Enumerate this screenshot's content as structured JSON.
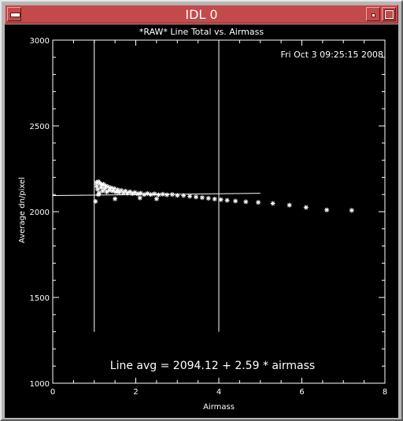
{
  "window": {
    "title": "IDL 0"
  },
  "chart_data": {
    "type": "scatter",
    "title": "*RAW* Line Total vs. Airmass",
    "timestamp": "Fri Oct  3 09:25:15 2008",
    "xlabel": "Airmass",
    "ylabel": "Average dn/pixel",
    "xlim": [
      0,
      8
    ],
    "ylim": [
      1000,
      3000
    ],
    "xticks": [
      "0",
      "2",
      "4",
      "6",
      "8"
    ],
    "yticks": [
      "1000",
      "1500",
      "2000",
      "2500",
      "3000"
    ],
    "annotation": "Line avg = 2094.12 + 2.59 * airmass",
    "color": "#ffffff",
    "fit": {
      "intercept": 2094.12,
      "slope": 2.59,
      "x_range": [
        0,
        5.0
      ]
    },
    "vertical_lines_x": [
      1.0,
      4.0
    ],
    "vertical_lines_y_range": [
      1300,
      3000
    ],
    "points": [
      [
        1.03,
        2060
      ],
      [
        1.05,
        2170
      ],
      [
        1.06,
        2150
      ],
      [
        1.08,
        2130
      ],
      [
        1.1,
        2175
      ],
      [
        1.12,
        2110
      ],
      [
        1.14,
        2165
      ],
      [
        1.16,
        2140
      ],
      [
        1.18,
        2155
      ],
      [
        1.2,
        2120
      ],
      [
        1.22,
        2160
      ],
      [
        1.25,
        2135
      ],
      [
        1.28,
        2150
      ],
      [
        1.3,
        2115
      ],
      [
        1.33,
        2145
      ],
      [
        1.36,
        2125
      ],
      [
        1.4,
        2140
      ],
      [
        1.44,
        2120
      ],
      [
        1.48,
        2135
      ],
      [
        1.52,
        2115
      ],
      [
        1.56,
        2128
      ],
      [
        1.6,
        2112
      ],
      [
        1.65,
        2124
      ],
      [
        1.7,
        2110
      ],
      [
        1.75,
        2120
      ],
      [
        1.8,
        2108
      ],
      [
        1.86,
        2116
      ],
      [
        1.92,
        2105
      ],
      [
        1.98,
        2112
      ],
      [
        2.05,
        2104
      ],
      [
        2.12,
        2108
      ],
      [
        2.2,
        2100
      ],
      [
        2.28,
        2106
      ],
      [
        2.36,
        2100
      ],
      [
        2.45,
        2104
      ],
      [
        2.55,
        2098
      ],
      [
        2.65,
        2102
      ],
      [
        2.75,
        2098
      ],
      [
        2.88,
        2100
      ],
      [
        3.0,
        2095
      ],
      [
        3.15,
        2094
      ],
      [
        3.3,
        2090
      ],
      [
        3.45,
        2086
      ],
      [
        3.6,
        2082
      ],
      [
        3.75,
        2078
      ],
      [
        3.9,
        2074
      ],
      [
        4.05,
        2070
      ],
      [
        4.2,
        2066
      ],
      [
        4.4,
        2062
      ],
      [
        4.65,
        2058
      ],
      [
        4.95,
        2054
      ],
      [
        5.3,
        2048
      ],
      [
        5.7,
        2038
      ],
      [
        6.1,
        2025
      ],
      [
        6.6,
        2010
      ],
      [
        7.2,
        2008
      ],
      [
        1.5,
        2075
      ],
      [
        2.1,
        2080
      ],
      [
        2.5,
        2075
      ],
      [
        1.1,
        2100
      ]
    ]
  }
}
